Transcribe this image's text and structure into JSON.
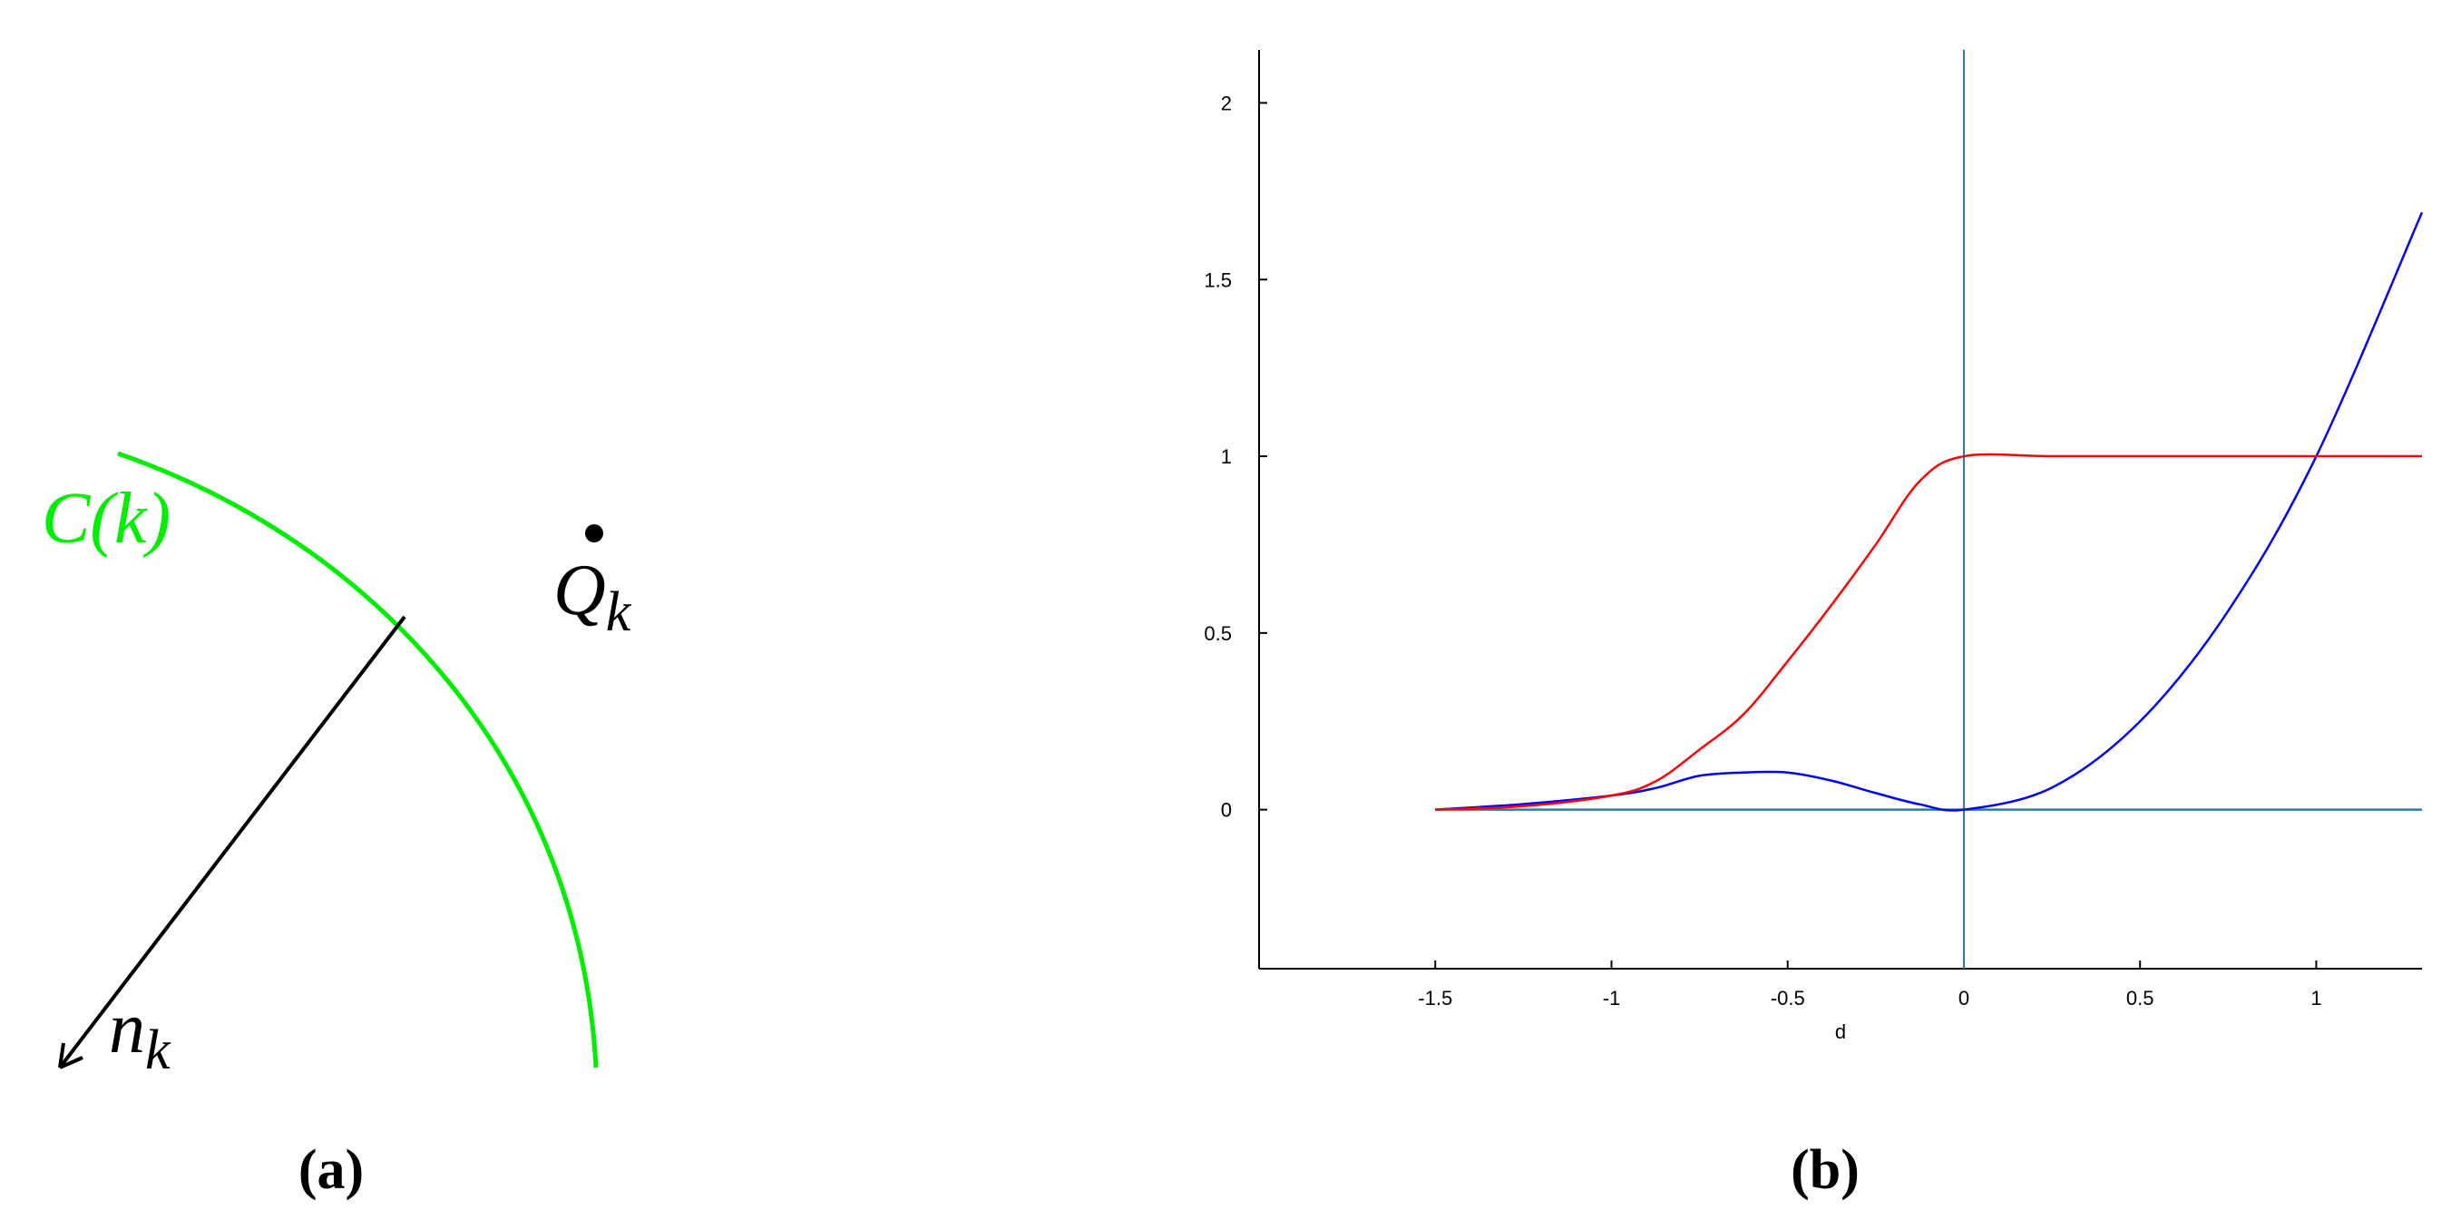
{
  "diagram": {
    "curve_label": "C(k)",
    "point_label": {
      "main": "Q",
      "sub": "k"
    },
    "normal_label": {
      "main": "n",
      "sub": "k"
    },
    "caption": "(a)"
  },
  "chart_data": {
    "type": "line",
    "caption": "(b)",
    "xlabel": "d",
    "x": [
      -1.5,
      -1.25,
      -1,
      -0.875,
      -0.75,
      -0.625,
      -0.5,
      -0.375,
      -0.25,
      -0.125,
      0,
      0.25,
      0.5,
      0.75,
      1,
      1.3
    ],
    "series": [
      {
        "color": "#ff0000",
        "values": [
          0,
          0.01,
          0.04,
          0.08,
          0.17,
          0.27,
          0.42,
          0.58,
          0.75,
          0.93,
          1,
          1,
          1,
          1,
          1,
          1
        ]
      },
      {
        "color": "#0000ff",
        "values": [
          0,
          0.016,
          0.04,
          0.061,
          0.096,
          0.105,
          0.105,
          0.082,
          0.047,
          0.015,
          0,
          0.0625,
          0.25,
          0.5625,
          1,
          1.69
        ]
      },
      {
        "color": "#2a7ab0",
        "values": [
          0,
          0,
          0,
          0,
          0,
          0,
          0,
          0,
          0,
          0,
          0,
          0,
          0,
          0,
          0,
          0
        ]
      }
    ],
    "xlim": [
      -2,
      1.3
    ],
    "ylim": [
      -0.45,
      2.15
    ],
    "xticks": [
      -1.5,
      -1,
      -0.5,
      0,
      0.5,
      1
    ],
    "yticks": [
      0,
      0.5,
      1,
      1.5,
      2
    ]
  }
}
